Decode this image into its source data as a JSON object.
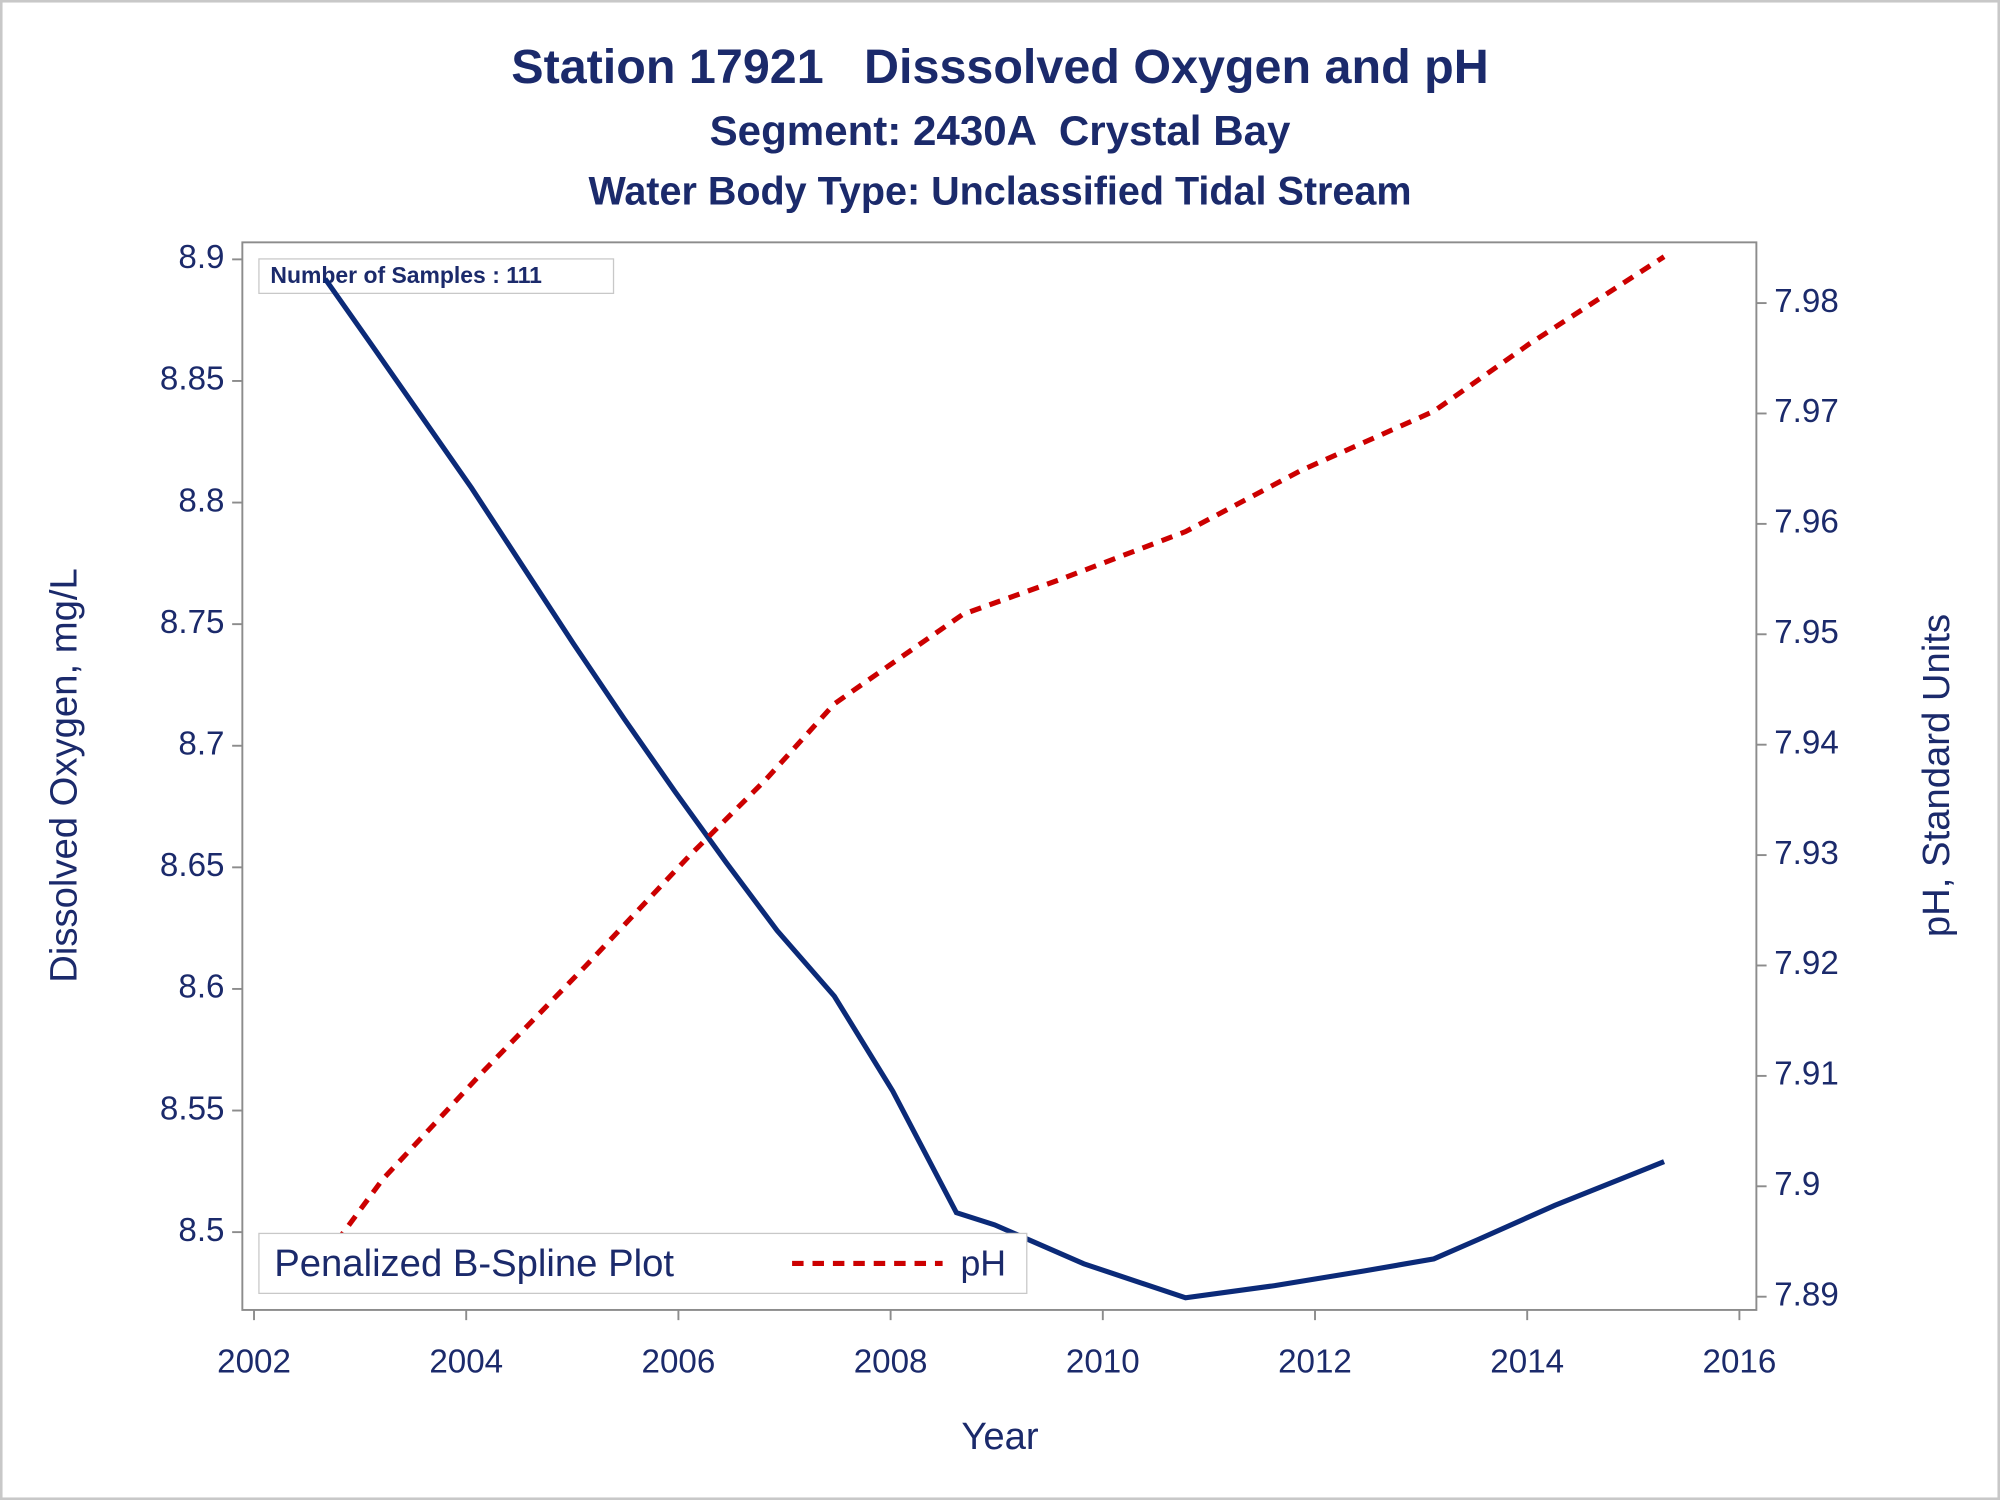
{
  "chart_data": {
    "type": "line",
    "title": "Station 17921   Disssolved Oxygen and pH",
    "subtitle": "Segment: 2430A  Crystal Bay",
    "subtitle2": "Water Body Type: Unclassified Tidal Stream",
    "x_label": "Year",
    "y_label": "Dissolved Oxygen, mg/L",
    "y2_label": "pH, Standard Units",
    "annotation": "Number of Samples : 111",
    "legend_title": "Penalized B-Spline Plot",
    "legend": "bottom-left",
    "xlim": [
      2001.89,
      2016.16
    ],
    "xticks": [
      2002,
      2004,
      2006,
      2008,
      2010,
      2012,
      2014,
      2016
    ],
    "ylim": [
      8.468,
      8.907
    ],
    "yticks": [
      8.5,
      8.55,
      8.6,
      8.65,
      8.7,
      8.75,
      8.8,
      8.85,
      8.9
    ],
    "y2lim": [
      7.8888,
      7.9855
    ],
    "y2ticks": [
      7.89,
      7.9,
      7.91,
      7.92,
      7.93,
      7.94,
      7.95,
      7.96,
      7.97,
      7.98
    ],
    "series": [
      {
        "color": "#0b2a78",
        "dash": false,
        "x": [
          2002.67,
          2003.09,
          2003.57,
          2004.05,
          2004.53,
          2005.01,
          2005.49,
          2005.97,
          2006.45,
          2006.93,
          2007.47,
          2008.02,
          2008.62,
          2008.98,
          2009.82,
          2010.78,
          2011.62,
          2012.46,
          2013.12,
          2013.54,
          2014.26,
          2015.29
        ],
        "values": [
          8.892,
          8.866,
          8.836,
          8.806,
          8.774,
          8.742,
          8.711,
          8.681,
          8.652,
          8.624,
          8.597,
          8.558,
          8.508,
          8.503,
          8.487,
          8.473,
          8.478,
          8.484,
          8.489,
          8.497,
          8.511,
          8.529
        ]
      },
      {
        "name": "pH",
        "color": "#cc0000",
        "dash": true,
        "axis": "y2",
        "x": [
          2002.55,
          2003.21,
          2004.17,
          2005.13,
          2006.1,
          2006.82,
          2007.47,
          2008.02,
          2008.68,
          2009.58,
          2010.78,
          2011.86,
          2013.12,
          2014.02,
          2015.29
        ],
        "values": [
          7.892,
          7.9006,
          7.9105,
          7.92,
          7.9299,
          7.9368,
          7.9437,
          7.9474,
          7.9518,
          7.9549,
          7.9593,
          7.9648,
          7.9702,
          7.9763,
          7.9842
        ]
      }
    ]
  }
}
